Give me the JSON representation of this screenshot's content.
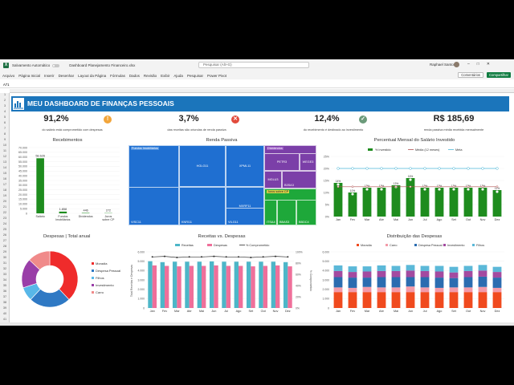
{
  "window": {
    "autosave_label": "Salvamento Automático",
    "file_name": "Dashboard Planejamento Financeiro.xlsx",
    "search_placeholder": "Pesquisar (Alt+G)",
    "user_name": "Raphael Santos"
  },
  "ribbon": {
    "tabs": [
      "Arquivo",
      "Página Inicial",
      "Inserir",
      "Desenhar",
      "Layout da Página",
      "Fórmulas",
      "Dados",
      "Revisão",
      "Exibir",
      "Ajuda",
      "Pesquisar",
      "Power Pivot"
    ],
    "comments_label": "Comentários",
    "share_label": "Compartilhar"
  },
  "formula_bar": {
    "cell_ref": "A71"
  },
  "dashboard": {
    "title": "MEU DASHBOARD DE FINANÇAS PESSOAIS",
    "kpis": [
      {
        "value": "91,2%",
        "description": "do salário está comprometido com despesas",
        "icon": "warning-icon",
        "icon_glyph": "!",
        "icon_color": "#f2a53a"
      },
      {
        "value": "3,7%",
        "description": "das receitas são oriundas de renda passiva",
        "icon": "close-circle-icon",
        "icon_glyph": "✕",
        "icon_color": "#e24a3b"
      },
      {
        "value": "12,4%",
        "description": "do recebimento é destinado ao investimento",
        "icon": "check-circle-icon",
        "icon_glyph": "✓",
        "icon_color": "#6b9a7a"
      },
      {
        "value": "R$ 185,69",
        "description": "renda passiva média recebida mensalmente",
        "icon": "",
        "icon_glyph": "",
        "icon_color": ""
      }
    ]
  },
  "chart_data": [
    {
      "id": "recebimentos",
      "type": "bar",
      "title": "Recebimentos",
      "categories": [
        "Salário",
        "Fundos Imobiliários",
        "Dividendos",
        "Juros sobre CP"
      ],
      "values": [
        58626,
        1858,
        446,
        272
      ],
      "data_labels": [
        "58.626",
        "1.858",
        "446",
        "272"
      ],
      "yticks": [
        "70.000",
        "65.000",
        "60.000",
        "55.000",
        "50.000",
        "45.000",
        "40.000",
        "35.000",
        "30.000",
        "25.000",
        "20.000",
        "15.000",
        "10.000",
        "5.000",
        "0"
      ],
      "ylim": [
        0,
        70000
      ],
      "color": "#1e8c1e"
    },
    {
      "id": "renda_passiva",
      "type": "treemap",
      "title": "Renda Passiva",
      "items": [
        {
          "name": "Fundos Imobiliários",
          "group": "fii",
          "color": "#1f6fd1"
        },
        {
          "name": "HGLG11",
          "group": "fii",
          "color": "#1f6fd1"
        },
        {
          "name": "XPML11",
          "group": "fii",
          "color": "#1f6fd1"
        },
        {
          "name": "MXRF11",
          "group": "fii",
          "color": "#1f6fd1"
        },
        {
          "name": "VISC11",
          "group": "fii",
          "color": "#1f6fd1"
        },
        {
          "name": "KNRI11",
          "group": "fii",
          "color": "#1f6fd1"
        },
        {
          "name": "VILG11",
          "group": "fii",
          "color": "#1f6fd1"
        },
        {
          "name": "Dividendos",
          "group": "div",
          "color": "#7b3fa8"
        },
        {
          "name": "PETR3",
          "group": "div",
          "color": "#7b3fa8"
        },
        {
          "name": "WEGE3",
          "group": "div",
          "color": "#7b3fa8"
        },
        {
          "name": "MGLU3",
          "group": "div",
          "color": "#7b3fa8"
        },
        {
          "name": "B3SA3",
          "group": "div",
          "color": "#7b3fa8"
        },
        {
          "name": "Juros sobre CP",
          "group": "jcp",
          "color": "#1ea83a"
        },
        {
          "name": "BBAS3",
          "group": "jcp",
          "color": "#1ea83a"
        },
        {
          "name": "ITSA4",
          "group": "jcp",
          "color": "#1ea83a"
        },
        {
          "name": "BBDC4",
          "group": "jcp",
          "color": "#1ea83a"
        }
      ]
    },
    {
      "id": "percentual_investido",
      "type": "bar+line",
      "title": "Percentual Mensal do Salário Investido",
      "legend": [
        "% Investido",
        "Média (12 meses)",
        "Meta"
      ],
      "categories": [
        "Jan",
        "Fev",
        "Mar",
        "Abr",
        "Mai",
        "Jun",
        "Jul",
        "Ago",
        "Set",
        "Out",
        "Nov",
        "Dez"
      ],
      "values": [
        14,
        10,
        12,
        12,
        13,
        16,
        12,
        12,
        12,
        12,
        12,
        11
      ],
      "data_labels": [
        "14%",
        "10%",
        "12%",
        "12%",
        "13%",
        "16%",
        "12%",
        "12%",
        "12%",
        "12%",
        "12%",
        "11%"
      ],
      "average": 12.4,
      "target": 20,
      "yticks": [
        "25%",
        "20%",
        "15%",
        "10%",
        "5%",
        "0%"
      ],
      "ylim": [
        0,
        25
      ]
    },
    {
      "id": "despesas_total",
      "type": "donut",
      "title": "Despesas | Total anual",
      "labels": [
        "Moradia",
        "Despesa Pessoal",
        "Filhos",
        "Investimento",
        "Carro"
      ],
      "values": [
        38,
        24,
        8,
        17,
        13
      ],
      "colors": [
        "#ef2b2b",
        "#2f79c4",
        "#58b7e8",
        "#9a3ea8",
        "#f08a8a"
      ]
    },
    {
      "id": "receitas_despesas",
      "type": "bar+line",
      "title": "Receitas vs. Despesas",
      "legend": [
        "Receitas",
        "Despesas",
        "% Comprometido"
      ],
      "categories": [
        "Jan",
        "Fev",
        "Mar",
        "Abr",
        "Mai",
        "Jun",
        "Jul",
        "Ago",
        "Set",
        "Out",
        "Nov",
        "Dez"
      ],
      "series": [
        {
          "name": "Receitas",
          "values": [
            5000,
            4900,
            4950,
            4950,
            4950,
            4980,
            4950,
            4950,
            4950,
            4950,
            4950,
            4900
          ],
          "color": "#4db6c8"
        },
        {
          "name": "Despesas",
          "values": [
            4550,
            4500,
            4450,
            4500,
            4500,
            4550,
            4500,
            4500,
            4450,
            4500,
            4550,
            4450
          ],
          "color": "#ef6f9a"
        }
      ],
      "line": {
        "name": "% Comprometido",
        "values": [
          91,
          92,
          90,
          91,
          91,
          92,
          91,
          91,
          90,
          91,
          92,
          91
        ]
      },
      "yticks": [
        "6.000",
        "5.000",
        "4.000",
        "3.000",
        "2.000",
        "1.000",
        "0"
      ],
      "ylim": [
        0,
        6000
      ],
      "y2ticks": [
        "100%",
        "80%",
        "60%",
        "40%",
        "20%",
        "0%"
      ],
      "y2lim": [
        0,
        100
      ],
      "ylabel": "Total Receitas e Despesas",
      "y2label": "% Comprometido"
    },
    {
      "id": "distribuicao_despesas",
      "type": "stacked-bar",
      "title": "Distribuição das Despesas",
      "categories": [
        "Jan",
        "Fev",
        "Mar",
        "Abr",
        "Mai",
        "Jun",
        "Jul",
        "Ago",
        "Set",
        "Out",
        "Nov",
        "Dez"
      ],
      "series": [
        {
          "name": "Moradia",
          "values": [
            1700,
            1700,
            1700,
            1700,
            1700,
            1700,
            1700,
            1700,
            1700,
            1700,
            1700,
            1700
          ],
          "color": "#f04a1e"
        },
        {
          "name": "Carro",
          "values": [
            500,
            450,
            550,
            500,
            500,
            600,
            500,
            450,
            500,
            500,
            550,
            450
          ],
          "color": "#f39aa8"
        },
        {
          "name": "Despesa Pessoal",
          "values": [
            1100,
            1100,
            1000,
            1100,
            1100,
            1000,
            1100,
            1100,
            1000,
            1100,
            1100,
            1100
          ],
          "color": "#2b6cb0"
        },
        {
          "name": "Investimento",
          "values": [
            650,
            600,
            650,
            650,
            650,
            700,
            650,
            650,
            600,
            650,
            650,
            600
          ],
          "color": "#a34aa0"
        },
        {
          "name": "Filhos",
          "values": [
            600,
            600,
            550,
            600,
            550,
            600,
            550,
            600,
            600,
            550,
            600,
            550
          ],
          "color": "#5bb8d8"
        }
      ],
      "yticks": [
        "6.000",
        "5.000",
        "4.000",
        "3.000",
        "2.000",
        "1.000",
        "0"
      ],
      "ylim": [
        0,
        6000
      ]
    }
  ]
}
